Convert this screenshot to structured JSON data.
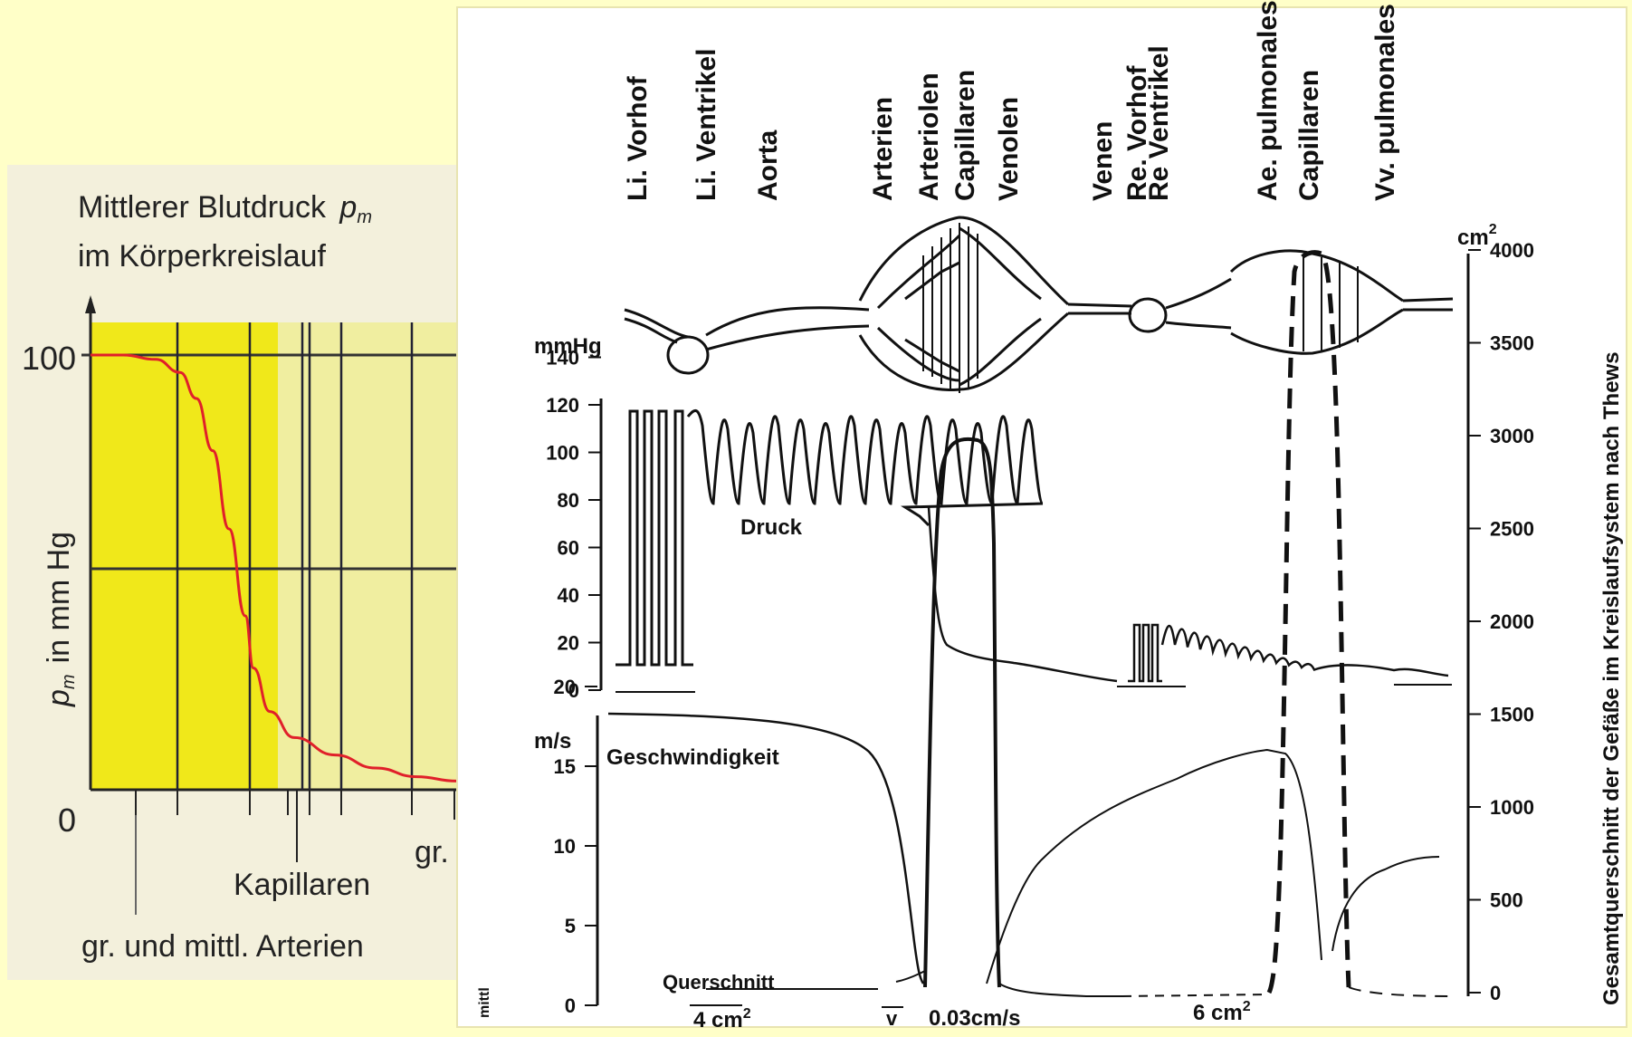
{
  "page": {
    "background": "#ffffc8"
  },
  "left_chart": {
    "title_line1": "Mittlerer Blutdruck",
    "title_symbol": "p",
    "title_symbol_sub": "m",
    "title_line2": "im Körperkreislauf",
    "ylabel": "p",
    "ylabel_sub": "m",
    "ylabel_rest": "in mm Hg",
    "y_tick_100": "100",
    "y_tick_0": "0",
    "label_right": "gr. und",
    "label_kapillaren": "Kapillaren",
    "label_arterien": "gr. und mittl. Arterien",
    "colors": {
      "yellow": "#f0e81a",
      "light_yellow": "#f0eea0",
      "curve": "#e0202a"
    }
  },
  "chart_data": [
    {
      "type": "line",
      "title": "Mittlerer Blutdruck pm im Körperkreislauf",
      "xlabel": "",
      "ylabel": "pm in mm Hg",
      "ylim": [
        0,
        100
      ],
      "y_ticks": [
        0,
        100
      ],
      "grid": true,
      "series": [
        {
          "x": [
            0,
            0.08,
            0.16,
            0.22,
            0.26,
            0.3,
            0.34,
            0.38,
            0.4,
            0.44,
            0.5,
            0.6,
            0.7,
            0.8,
            0.9,
            1.0
          ],
          "values": [
            100,
            100,
            99,
            96,
            90,
            78,
            60,
            40,
            28,
            18,
            12,
            8,
            5,
            3,
            2,
            2
          ]
        }
      ]
    },
    {
      "type": "line",
      "title": "",
      "ylabel": "mmHg",
      "y_ticks": [
        0,
        20,
        40,
        60,
        80,
        100,
        120,
        140
      ],
      "secondary_ylabel": "Gesamtquerschnitt der Gefäße im Kreislaufsystem nach Thews",
      "secondary_yunit": "cm2",
      "secondary_y_ticks": [
        0,
        500,
        1000,
        1500,
        2000,
        2500,
        3000,
        3500,
        4000
      ],
      "velocity_ylabel": "m/s",
      "velocity_y_ticks": [
        0,
        5,
        10,
        15,
        20
      ],
      "curve_labels": [
        "Druck",
        "Geschwindigkeit",
        "Querschnitt"
      ]
    }
  ],
  "right_chart": {
    "segments": [
      "Li. Vorhof",
      "Li. Ventrikel",
      "Aorta",
      "Arterien",
      "Arteriolen",
      "Capillaren",
      "Venolen",
      "Venen",
      "Re. Vorhof",
      "Re Ventrikel",
      "Ae. pulmonales",
      "Capillaren",
      "Vv. pulmonales"
    ],
    "pressure_unit": "mmHg",
    "pressure_ticks": [
      "0",
      "20",
      "40",
      "60",
      "80",
      "100",
      "120",
      "140"
    ],
    "velocity_unit": "m/s",
    "velocity_ticks": [
      "0",
      "5",
      "10",
      "15",
      "20"
    ],
    "area_unit": "cm",
    "area_unit_sup": "2",
    "area_ticks": [
      "0",
      "500",
      "1000",
      "1500",
      "2000",
      "2500",
      "3000",
      "3500",
      "4000"
    ],
    "label_druck": "Druck",
    "label_geschwindigkeit": "Geschwindigkeit",
    "label_querschnitt": "Querschnitt",
    "label_4cm": "4 cm",
    "label_v": "v",
    "label_003": "0.03cm/s",
    "label_6cm": "6 cm",
    "sup_2": "2",
    "right_title": "Gesamtquerschnitt der Gefäße im Kreislaufsystem nach Thews",
    "label_mittl": "mittl"
  }
}
